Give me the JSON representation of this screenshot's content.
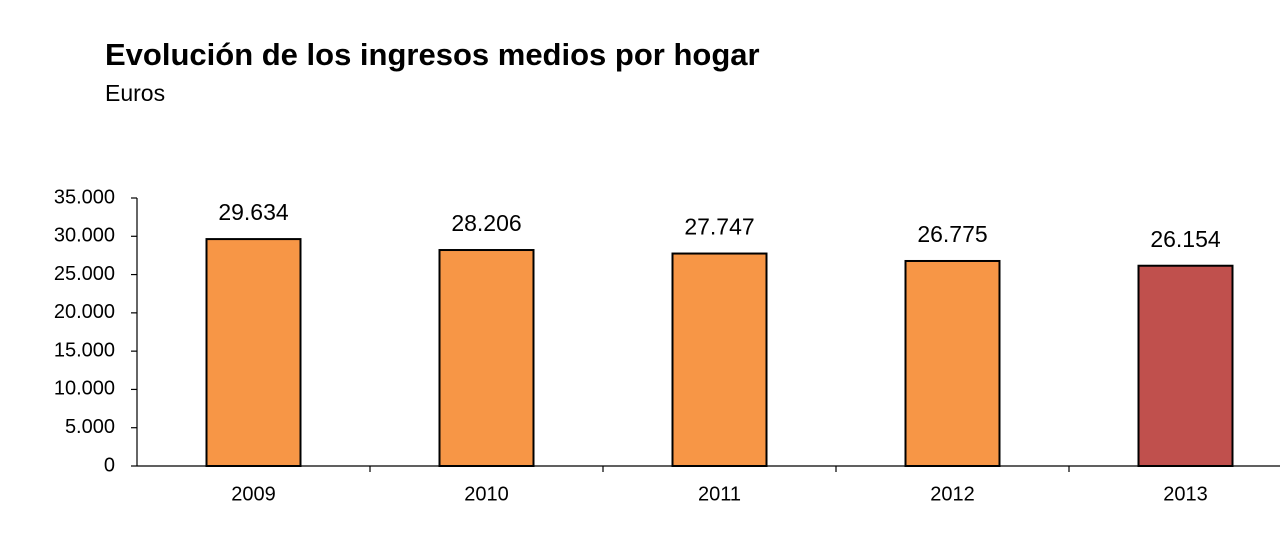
{
  "chart_data": {
    "type": "bar",
    "title": "Evolución de los ingresos medios por hogar",
    "subtitle": "Euros",
    "categories": [
      "2009",
      "2010",
      "2011",
      "2012",
      "2013"
    ],
    "values": [
      29634,
      28206,
      27747,
      26775,
      26154
    ],
    "value_labels": [
      "29.634",
      "28.206",
      "27.747",
      "26.775",
      "26.154"
    ],
    "colors": [
      "#f79646",
      "#f79646",
      "#f79646",
      "#f79646",
      "#c0504d"
    ],
    "ylim": [
      0,
      35000
    ],
    "yticks": [
      0,
      {
        "value": 5000,
        "label": "5.000"
      },
      {
        "value": 10000,
        "label": "10.000"
      },
      {
        "value": 15000,
        "label": "15.000"
      },
      {
        "value": 20000,
        "label": "20.000"
      },
      {
        "value": 25000,
        "label": "25.000"
      },
      {
        "value": 30000,
        "label": "30.000"
      },
      {
        "value": 35000,
        "label": "35.000"
      }
    ],
    "grid": false
  }
}
